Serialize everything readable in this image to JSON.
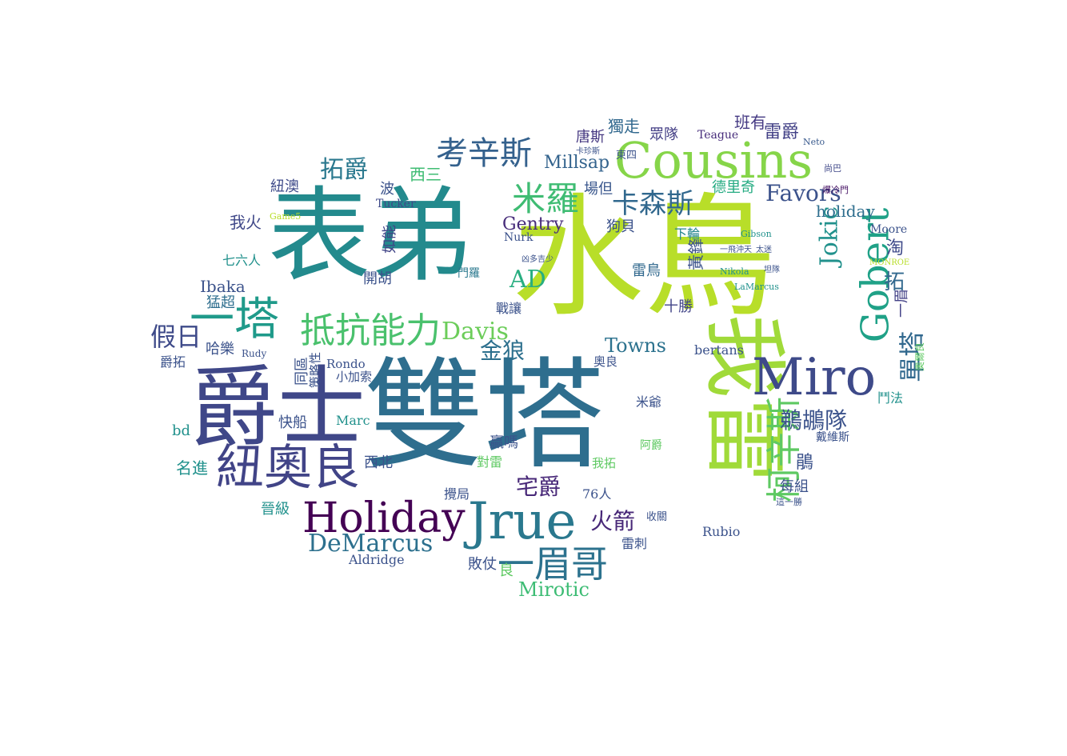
{
  "colors": {
    "background": "#ffffff",
    "palette": "viridis"
  },
  "words": [
    {
      "text": "雙塔",
      "color": "#2e6e8e"
    },
    {
      "text": "水鳥",
      "color": "#b8de29"
    },
    {
      "text": "表弟",
      "color": "#238a8d"
    },
    {
      "text": "爵士",
      "color": "#3f4788"
    },
    {
      "text": "我雷",
      "color": "#a0da39"
    },
    {
      "text": "Cousins",
      "color": "#86d549"
    },
    {
      "text": "Miro",
      "color": "#3e4a89"
    },
    {
      "text": "Jrue",
      "color": "#2a788e"
    },
    {
      "text": "Holiday",
      "color": "#440154"
    },
    {
      "text": "紐奧良",
      "color": "#414487"
    },
    {
      "text": "一塔",
      "color": "#1f9a8a"
    },
    {
      "text": "抵抗能力",
      "color": "#4ac16d"
    },
    {
      "text": "Gobert",
      "color": "#1fa187"
    },
    {
      "text": "柯辛斯",
      "color": "#5ec962"
    },
    {
      "text": "一眉哥",
      "color": "#2c728e"
    },
    {
      "text": "考辛斯",
      "color": "#34618d"
    },
    {
      "text": "米羅",
      "color": "#3fbc73"
    },
    {
      "text": "卡森斯",
      "color": "#31688e"
    },
    {
      "text": "DeMarcus",
      "color": "#2d708e"
    },
    {
      "text": "Davis",
      "color": "#6ccd5a"
    },
    {
      "text": "AD",
      "color": "#28ae80"
    },
    {
      "text": "Favors",
      "color": "#3b528b"
    },
    {
      "text": "Jokic",
      "color": "#21918c"
    },
    {
      "text": "單塔",
      "color": "#31688e"
    },
    {
      "text": "拓爵",
      "color": "#2a788e"
    },
    {
      "text": "假日",
      "color": "#3e4a89"
    },
    {
      "text": "Towns",
      "color": "#2c728e"
    },
    {
      "text": "Mirotic",
      "color": "#3dbc74"
    },
    {
      "text": "Gentry",
      "color": "#472c7a"
    },
    {
      "text": "金狼",
      "color": "#2d708e"
    },
    {
      "text": "宅爵",
      "color": "#482878"
    },
    {
      "text": "火箭",
      "color": "#482878"
    },
    {
      "text": "鵜鶘隊",
      "color": "#3b528b"
    },
    {
      "text": "Millsap",
      "color": "#33638d"
    },
    {
      "text": "雷爵",
      "color": "#424086"
    },
    {
      "text": "獨走",
      "color": "#31688e"
    },
    {
      "text": "班有",
      "color": "#443983"
    },
    {
      "text": "Teague",
      "color": "#472d7b"
    },
    {
      "text": "唐斯",
      "color": "#453781"
    },
    {
      "text": "眾隊",
      "color": "#433e85"
    },
    {
      "text": "東四",
      "color": "#3b528b"
    },
    {
      "text": "Neto",
      "color": "#38598c"
    },
    {
      "text": "卡珍斯",
      "color": "#3b528b"
    },
    {
      "text": "尚巴",
      "color": "#3f4788"
    },
    {
      "text": "西三",
      "color": "#3fbc73"
    },
    {
      "text": "場但",
      "color": "#39568c"
    },
    {
      "text": "德里奇",
      "color": "#25ab82"
    },
    {
      "text": "holiday",
      "color": "#2e6e8e"
    },
    {
      "text": "爆冷門",
      "color": "#471365"
    },
    {
      "text": "淘",
      "color": "#3e4989"
    },
    {
      "text": "Moore",
      "color": "#3b528b"
    },
    {
      "text": "拓",
      "color": "#31688e"
    },
    {
      "text": "一眉",
      "color": "#424086"
    },
    {
      "text": "黃鋒",
      "color": "#3b528b"
    },
    {
      "text": "十勝",
      "color": "#414487"
    },
    {
      "text": "雷鳥",
      "color": "#31688e"
    },
    {
      "text": "下輪",
      "color": "#25858e"
    },
    {
      "text": "狗貝",
      "color": "#3b528b"
    },
    {
      "text": "紐澳",
      "color": "#3e4a89"
    },
    {
      "text": "波",
      "color": "#3b528b"
    },
    {
      "text": "Tucker",
      "color": "#3e4a89"
    },
    {
      "text": "我火",
      "color": "#3f4788"
    },
    {
      "text": "如能",
      "color": "#414487"
    },
    {
      "text": "七六人",
      "color": "#21918c"
    },
    {
      "text": "猛超",
      "color": "#2e6e8e"
    },
    {
      "text": "Ibaka",
      "color": "#3b528b"
    },
    {
      "text": "開胡",
      "color": "#3b528b"
    },
    {
      "text": "門羅",
      "color": "#2a788e"
    },
    {
      "text": "戰讓",
      "color": "#3b528b"
    },
    {
      "text": "Nurk",
      "color": "#3b528b"
    },
    {
      "text": "凶多吉少",
      "color": "#3b528b"
    },
    {
      "text": "Gibson",
      "color": "#21918c"
    },
    {
      "text": "Nikola",
      "color": "#21918c"
    },
    {
      "text": "LaMarcus",
      "color": "#21918c"
    },
    {
      "text": "一飛沖天",
      "color": "#3b528b"
    },
    {
      "text": "太迷",
      "color": "#3b528b"
    },
    {
      "text": "坦隊",
      "color": "#3b528b"
    },
    {
      "text": "bertans",
      "color": "#3b528b"
    },
    {
      "text": "Rondo",
      "color": "#3b528b"
    },
    {
      "text": "小加索",
      "color": "#3b528b"
    },
    {
      "text": "同區",
      "color": "#3b528b"
    },
    {
      "text": "策略性",
      "color": "#3b528b"
    },
    {
      "text": "哈樂",
      "color": "#3b528b"
    },
    {
      "text": "爵拓",
      "color": "#3b528b"
    },
    {
      "text": "Rudy",
      "color": "#3b528b"
    },
    {
      "text": "奧良",
      "color": "#3b528b"
    },
    {
      "text": "米爺",
      "color": "#3b528b"
    },
    {
      "text": "快船",
      "color": "#3b528b"
    },
    {
      "text": "Marc",
      "color": "#21918c"
    },
    {
      "text": "bd",
      "color": "#21918c"
    },
    {
      "text": "名進",
      "color": "#21918c"
    },
    {
      "text": "西北",
      "color": "#3b528b"
    },
    {
      "text": "贏嗎",
      "color": "#3b528b"
    },
    {
      "text": "對雷",
      "color": "#5ec962"
    },
    {
      "text": "攪局",
      "color": "#3b528b"
    },
    {
      "text": "76人",
      "color": "#3b528b"
    },
    {
      "text": "晉級",
      "color": "#21918c"
    },
    {
      "text": "敗仗",
      "color": "#3b528b"
    },
    {
      "text": "良",
      "color": "#5ec962"
    },
    {
      "text": "Aldridge",
      "color": "#3b528b"
    },
    {
      "text": "雷刺",
      "color": "#3b528b"
    },
    {
      "text": "Rubio",
      "color": "#3b528b"
    },
    {
      "text": "每組",
      "color": "#3b528b"
    },
    {
      "text": "鵑",
      "color": "#3b528b"
    },
    {
      "text": "戴維斯",
      "color": "#3b528b"
    },
    {
      "text": "鬥法",
      "color": "#21918c"
    },
    {
      "text": "奧爾良",
      "color": "#5ec962"
    },
    {
      "text": "我拓",
      "color": "#5ec962"
    },
    {
      "text": "阿爵",
      "color": "#5ec962"
    },
    {
      "text": "收關",
      "color": "#3b528b"
    },
    {
      "text": "這一勝",
      "color": "#3b528b"
    },
    {
      "text": "Game5",
      "color": "#b8de29"
    },
    {
      "text": "MONROE",
      "color": "#b8de29"
    }
  ]
}
